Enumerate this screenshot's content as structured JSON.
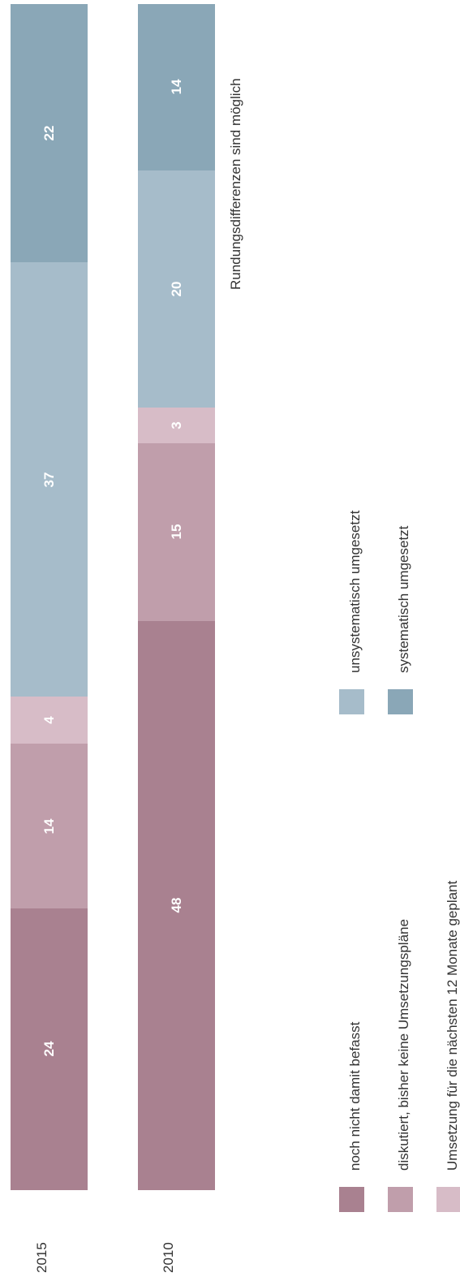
{
  "chart_data": {
    "type": "bar",
    "orientation": "stacked-100",
    "categories": [
      "2015",
      "2010"
    ],
    "series": [
      {
        "name": "noch nicht damit befasst",
        "values": [
          24,
          48
        ],
        "color": "#a98190"
      },
      {
        "name": "diskutiert, bisher keine Umsetzungspläne",
        "values": [
          14,
          15
        ],
        "color": "#c09eab"
      },
      {
        "name": "Umsetzung für die nächsten 12 Monate geplant",
        "values": [
          4,
          3
        ],
        "color": "#d7bcc7"
      },
      {
        "name": "unsystematisch umgesetzt",
        "values": [
          37,
          20
        ],
        "color": "#a6bcca"
      },
      {
        "name": "systematisch umgesetzt",
        "values": [
          22,
          14
        ],
        "color": "#8aa7b7"
      }
    ],
    "title": "",
    "xlabel": "",
    "ylabel": "",
    "ylim": [
      0,
      100
    ],
    "grid": false,
    "legend": "bottom",
    "note": "Rundungsdifferenzen sind möglich"
  }
}
